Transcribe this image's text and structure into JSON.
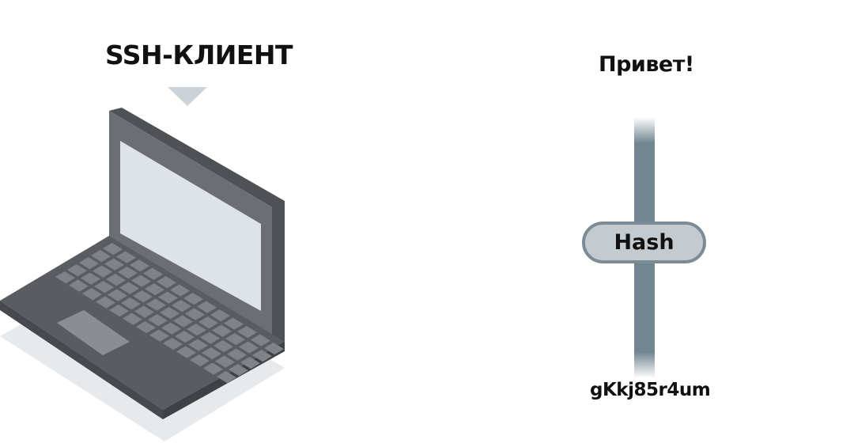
{
  "client": {
    "title": "SSH-КЛИЕНТ"
  },
  "hashing": {
    "input": "Привет!",
    "function_label": "Hash",
    "output": "gKkj85r4um"
  },
  "colors": {
    "laptop_dark": "#575b5f",
    "laptop_body": "#676b6f",
    "screen": "#dde3e8",
    "key": "#7f8387",
    "shadow": "#e6eaed",
    "pointer": "#ccd3d8",
    "pipe": "#718690",
    "pill_fill": "#c4cbd0",
    "pill_border": "#7d8b94"
  }
}
